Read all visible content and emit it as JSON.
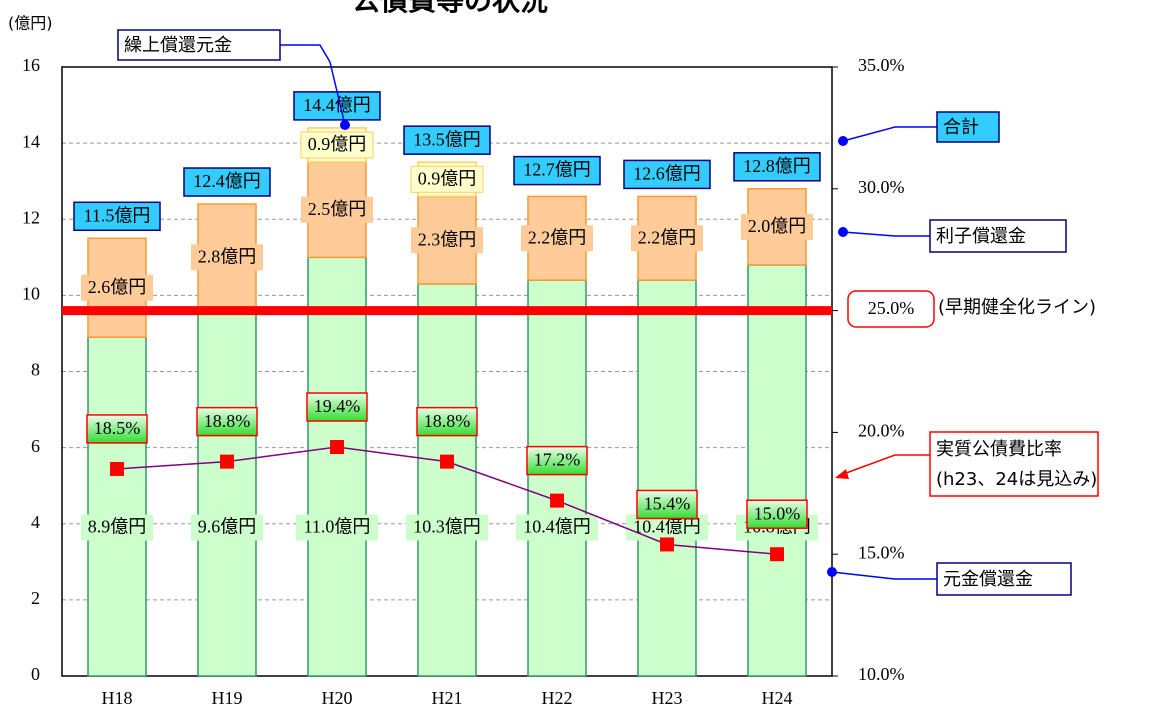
{
  "chart_data": {
    "type": "bar",
    "title": "公債費等の状況",
    "y_axis_label": "(億円)",
    "categories": [
      "H18",
      "H19",
      "H20",
      "H21",
      "H22",
      "H23",
      "H24"
    ],
    "ylim": [
      0,
      16
    ],
    "yticks": [
      0,
      2,
      4,
      6,
      8,
      10,
      12,
      14,
      16
    ],
    "y2lim": [
      10,
      35
    ],
    "y2ticks": [
      {
        "value": 10,
        "label": "10.0%"
      },
      {
        "value": 15,
        "label": "15.0%"
      },
      {
        "value": 20,
        "label": "20.0%"
      },
      {
        "value": 25,
        "label": "25.0%"
      },
      {
        "value": 30,
        "label": "30.0%"
      },
      {
        "value": 35,
        "label": "35.0%"
      }
    ],
    "grid": true,
    "series": [
      {
        "name": "元金償還金",
        "type": "bar",
        "color": "#ccffcc",
        "stroke": "#339966",
        "values": [
          8.9,
          9.6,
          11.0,
          10.3,
          10.4,
          10.4,
          10.8
        ],
        "value_labels": [
          "8.9億円",
          "9.6億円",
          "11.0億円",
          "10.3億円",
          "10.4億円",
          "10.4億円",
          "10.8億円"
        ]
      },
      {
        "name": "利子償還金",
        "type": "bar",
        "color": "#ffcc99",
        "stroke": "#ff9933",
        "values": [
          2.6,
          2.8,
          2.5,
          2.3,
          2.2,
          2.2,
          2.0
        ],
        "value_labels": [
          "2.6億円",
          "2.8億円",
          "2.5億円",
          "2.3億円",
          "2.2億円",
          "2.2億円",
          "2.0億円"
        ]
      },
      {
        "name": "繰上償還元金",
        "type": "bar",
        "color": "#ffffcc",
        "stroke": "#ffcc66",
        "values": [
          null,
          null,
          0.9,
          0.9,
          null,
          null,
          null
        ],
        "value_labels": [
          null,
          null,
          "0.9億円",
          "0.9億円",
          null,
          null,
          null
        ]
      },
      {
        "name": "合計",
        "type": "total",
        "color": "#33ccff",
        "values": [
          11.5,
          12.4,
          14.4,
          13.5,
          12.7,
          12.6,
          12.8
        ],
        "value_labels": [
          "11.5億円",
          "12.4億円",
          "14.4億円",
          "13.5億円",
          "12.7億円",
          "12.6億円",
          "12.8億円"
        ]
      },
      {
        "name": "実質公債費比率",
        "type": "line",
        "axis": "y2",
        "color": "#800080",
        "marker_color": "#ff0000",
        "values": [
          18.5,
          18.8,
          19.4,
          18.8,
          17.2,
          15.4,
          15.0
        ],
        "value_labels": [
          "18.5%",
          "18.8%",
          "19.4%",
          "18.8%",
          "17.2%",
          "15.4%",
          "15.0%"
        ]
      }
    ],
    "ratio_note": "(h23、24は見込み)",
    "threshold": {
      "value": 25,
      "value_label": "25.0%",
      "label": "(早期健全化ライン)",
      "color": "#ff0000"
    }
  }
}
